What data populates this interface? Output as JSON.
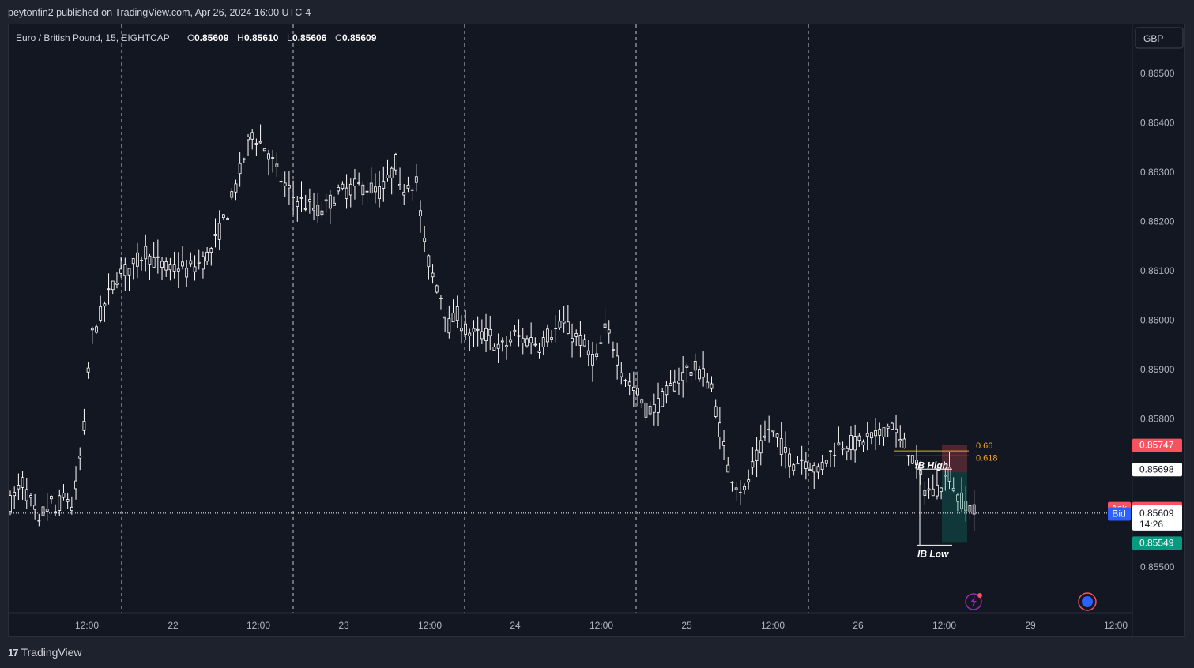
{
  "header": {
    "published_text": "peytonfin2 published on TradingView.com, Apr 26, 2024 16:00 UTC-4"
  },
  "legend": {
    "symbol": "Euro / British Pound, 15, EIGHTCAP",
    "o_label": "O",
    "o_value": "0.85609",
    "h_label": "H",
    "h_value": "0.85610",
    "l_label": "L",
    "l_value": "0.85606",
    "c_label": "C",
    "c_value": "0.85609"
  },
  "currency_button": "GBP",
  "footer": {
    "brand": "TradingView"
  },
  "colors": {
    "background": "#131722",
    "candle": "#ffffff",
    "grid_divider": "#ffffff",
    "ask": "#f7525f",
    "bid": "#2962ff",
    "target": "#089981",
    "fib": "#f5a623",
    "level_box": "#ffffff"
  },
  "icons": [
    "lightning-icon",
    "globe-icon"
  ],
  "chart_data": {
    "type": "candlestick",
    "ylim": [
      0.8545,
      0.8656
    ],
    "y_ticks": [
      "0.86500",
      "0.86400",
      "0.86300",
      "0.86200",
      "0.86100",
      "0.86000",
      "0.85900",
      "0.85800",
      "0.85500"
    ],
    "x_ticks": [
      "12:00",
      "22",
      "12:00",
      "23",
      "12:00",
      "24",
      "12:00",
      "25",
      "12:00",
      "26",
      "12:00",
      "29",
      "12:00"
    ],
    "session_dividers": [
      "21 18:00",
      "22 18:00",
      "23 18:00",
      "24 18:00",
      "25 18:00"
    ],
    "path": [
      [
        0,
        0.8563
      ],
      [
        3,
        0.8567
      ],
      [
        6,
        0.8561
      ],
      [
        7,
        0.8558
      ],
      [
        8,
        0.8561
      ],
      [
        10,
        0.8563
      ],
      [
        11,
        0.8561
      ],
      [
        12,
        0.8563
      ],
      [
        14,
        0.8564
      ],
      [
        15,
        0.8562
      ],
      [
        16,
        0.8566
      ],
      [
        18,
        0.8578
      ],
      [
        19,
        0.859
      ],
      [
        20,
        0.8597
      ],
      [
        22,
        0.8601
      ],
      [
        24,
        0.8605
      ],
      [
        26,
        0.8609
      ],
      [
        28,
        0.861
      ],
      [
        30,
        0.8611
      ],
      [
        32,
        0.8613
      ],
      [
        33,
        0.8614
      ],
      [
        35,
        0.8612
      ],
      [
        37,
        0.8611
      ],
      [
        39,
        0.861
      ],
      [
        41,
        0.8611
      ],
      [
        43,
        0.861
      ],
      [
        45,
        0.8611
      ],
      [
        47,
        0.8612
      ],
      [
        49,
        0.8614
      ],
      [
        51,
        0.8618
      ],
      [
        53,
        0.8622
      ],
      [
        55,
        0.8627
      ],
      [
        57,
        0.8633
      ],
      [
        59,
        0.8638
      ],
      [
        61,
        0.8636
      ],
      [
        63,
        0.8634
      ],
      [
        65,
        0.863
      ],
      [
        67,
        0.8627
      ],
      [
        69,
        0.8625
      ],
      [
        71,
        0.8624
      ],
      [
        73,
        0.8623
      ],
      [
        75,
        0.8622
      ],
      [
        77,
        0.8623
      ],
      [
        79,
        0.8625
      ],
      [
        81,
        0.8626
      ],
      [
        84,
        0.8627
      ],
      [
        87,
        0.8627
      ],
      [
        90,
        0.8626
      ],
      [
        92,
        0.8628
      ],
      [
        94,
        0.8632
      ],
      [
        95,
        0.8626
      ],
      [
        97,
        0.8628
      ],
      [
        99,
        0.8628
      ],
      [
        101,
        0.8615
      ],
      [
        103,
        0.8609
      ],
      [
        105,
        0.8605
      ],
      [
        107,
        0.8599
      ],
      [
        109,
        0.8601
      ],
      [
        111,
        0.8598
      ],
      [
        113,
        0.8597
      ],
      [
        115,
        0.8597
      ],
      [
        117,
        0.8597
      ],
      [
        119,
        0.8594
      ],
      [
        121,
        0.8595
      ],
      [
        123,
        0.8597
      ],
      [
        125,
        0.8596
      ],
      [
        127,
        0.8596
      ],
      [
        129,
        0.8595
      ],
      [
        131,
        0.8597
      ],
      [
        133,
        0.8598
      ],
      [
        135,
        0.8599
      ],
      [
        137,
        0.8597
      ],
      [
        139,
        0.8596
      ],
      [
        141,
        0.8593
      ],
      [
        143,
        0.8592
      ],
      [
        145,
        0.8598
      ],
      [
        147,
        0.8595
      ],
      [
        149,
        0.859
      ],
      [
        151,
        0.8587
      ],
      [
        153,
        0.8585
      ],
      [
        155,
        0.8582
      ],
      [
        157,
        0.8582
      ],
      [
        159,
        0.8584
      ],
      [
        161,
        0.8586
      ],
      [
        163,
        0.8588
      ],
      [
        165,
        0.859
      ],
      [
        167,
        0.859
      ],
      [
        169,
        0.8589
      ],
      [
        171,
        0.8586
      ],
      [
        173,
        0.8578
      ],
      [
        175,
        0.857
      ],
      [
        177,
        0.8567
      ],
      [
        179,
        0.8565
      ],
      [
        181,
        0.857
      ],
      [
        183,
        0.8574
      ],
      [
        185,
        0.8578
      ],
      [
        187,
        0.8576
      ],
      [
        189,
        0.8573
      ],
      [
        191,
        0.8571
      ],
      [
        193,
        0.8572
      ],
      [
        195,
        0.8571
      ],
      [
        197,
        0.8569
      ],
      [
        199,
        0.8572
      ],
      [
        201,
        0.8574
      ],
      [
        203,
        0.8575
      ],
      [
        205,
        0.8575
      ],
      [
        207,
        0.8575
      ],
      [
        209,
        0.8576
      ],
      [
        211,
        0.8576
      ],
      [
        213,
        0.8578
      ],
      [
        215,
        0.8579
      ],
      [
        217,
        0.8575
      ],
      [
        219,
        0.8574
      ],
      [
        221,
        0.857
      ],
      [
        223,
        0.8566
      ],
      [
        225,
        0.8565
      ],
      [
        227,
        0.8567
      ],
      [
        229,
        0.8569
      ],
      [
        231,
        0.8564
      ],
      [
        233,
        0.8563
      ],
      [
        235,
        0.8561
      ]
    ],
    "current_price": "0.85609",
    "countdown": "14:26",
    "price_labels": [
      {
        "value": "0.85747",
        "style": "red"
      },
      {
        "value": "0.85698",
        "style": "white"
      },
      {
        "value": "0.85619",
        "style": "red",
        "tag": "Ask"
      },
      {
        "value": "0.85608",
        "style": "blue",
        "tag": "Bid"
      },
      {
        "value": "0.85549",
        "style": "green"
      }
    ],
    "annotations": {
      "ib_high": "IB High",
      "ib_low": "IB Low",
      "fib_1": "0.66",
      "fib_2": "0.618"
    }
  }
}
